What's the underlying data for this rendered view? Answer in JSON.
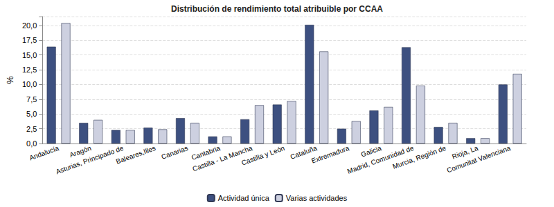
{
  "chart_data": {
    "type": "bar",
    "title": "Distribución de rendimiento total atribuible por CCAA",
    "y_label": "%",
    "categories": [
      "Andalucía",
      "Aragón",
      "Asturias, Principado de",
      "Baleares,Illes",
      "Canarias",
      "Cantabria",
      "Castilla - La Mancha",
      "Castilla y León",
      "Cataluña",
      "Extremadura",
      "Galicia",
      "Madrid, Comunidad de",
      "Murcia, Región de",
      "Rioja, La",
      "Comunitat Valenciana"
    ],
    "series": [
      {
        "name": "Actividad única",
        "color": "#3d5080",
        "values": [
          16.4,
          3.5,
          2.3,
          2.7,
          4.3,
          1.2,
          4.1,
          6.6,
          20.1,
          2.5,
          5.6,
          16.3,
          2.8,
          0.9,
          10.0
        ]
      },
      {
        "name": "Varias actividades",
        "color": "#cdd0e0",
        "values": [
          20.4,
          4.0,
          2.3,
          2.4,
          3.5,
          1.2,
          6.5,
          7.2,
          15.6,
          3.8,
          6.2,
          9.8,
          3.5,
          0.9,
          11.8
        ]
      }
    ],
    "ylim": [
      0,
      21.5
    ],
    "yticks": [
      {
        "value": 0,
        "label": "0,0"
      },
      {
        "value": 2.5,
        "label": "2,5"
      },
      {
        "value": 5,
        "label": "5,0"
      },
      {
        "value": 7.5,
        "label": "7,5"
      },
      {
        "value": 10,
        "label": "10,0"
      },
      {
        "value": 12.5,
        "label": "12,5"
      },
      {
        "value": 15,
        "label": "15,0"
      },
      {
        "value": 17.5,
        "label": "17,5"
      },
      {
        "value": 20,
        "label": "20,0"
      }
    ],
    "grid": true,
    "legend": "bottom"
  }
}
